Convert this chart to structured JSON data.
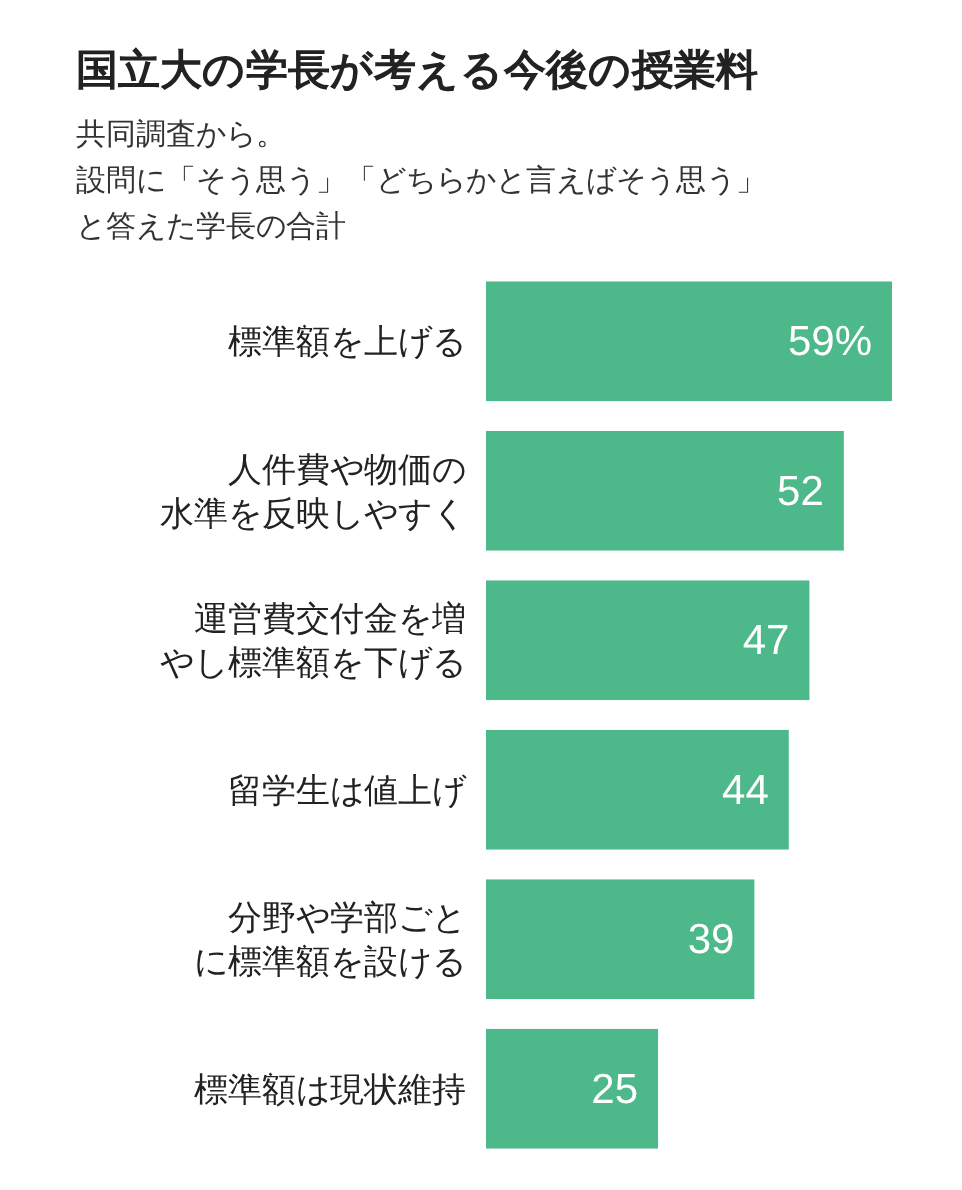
{
  "chart_data": {
    "type": "bar",
    "orientation": "horizontal",
    "title": "国立大の学長が考える今後の授業料",
    "subtitle": "共同調査から。設問に「そう思う」「どちらかと言えばそう思う」と答えた学長の合計",
    "categories": [
      "標準額を上げる",
      "人件費や物価の水準を反映しやすく",
      "運営費交付金を増やし標準額を下げる",
      "留学生は値上げ",
      "分野や学部ごとに標準額を設ける",
      "標準額は現状維持"
    ],
    "values": [
      59,
      52,
      47,
      44,
      39,
      25
    ],
    "value_labels": [
      "59%",
      "52",
      "47",
      "44",
      "39",
      "25"
    ],
    "color": "#4db88a"
  }
}
